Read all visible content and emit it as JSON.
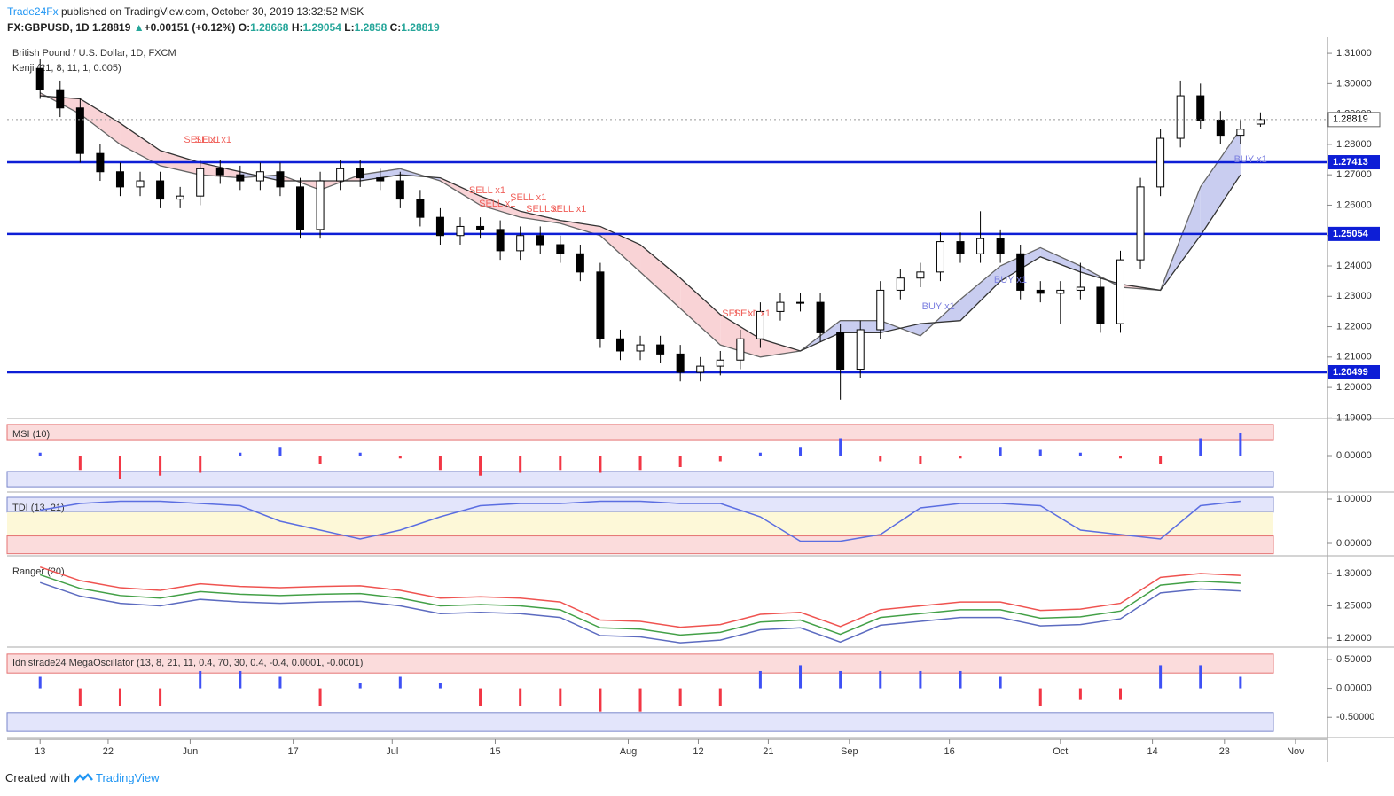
{
  "header": {
    "brand": "Trade24Fx",
    "published": "published on TradingView.com, October 30, 2019 13:32:52 MSK",
    "symbol": "FX:GBPUSD, 1D",
    "last": 1.28819,
    "change": "+0.00151 (+0.12%)",
    "o_label": "O:",
    "open": 1.28668,
    "h_label": "H:",
    "high": 1.29054,
    "l_label": "L:",
    "low": 1.2858,
    "c_label": "C:",
    "close": 1.28819
  },
  "chart_data": [
    {
      "type": "candlestick",
      "title": "British Pound / U.S. Dollar, 1D, FXCM",
      "subtitle": "Kenji (21, 8, 11, 1, 0.005)",
      "x": [
        0,
        2,
        4,
        6,
        8,
        10,
        12,
        14,
        16,
        18,
        20,
        22,
        24,
        26,
        28,
        30,
        32,
        34,
        36,
        38,
        40,
        42,
        44,
        46,
        48,
        50,
        52,
        54,
        56,
        58,
        60,
        62,
        64,
        66,
        68,
        70,
        72,
        74,
        76,
        78,
        80,
        82,
        84,
        86,
        88,
        90,
        92,
        94,
        96,
        98,
        100,
        102,
        104,
        106,
        108,
        110,
        112,
        114,
        116,
        118,
        120,
        122
      ],
      "open": [
        1.305,
        1.298,
        1.292,
        1.277,
        1.271,
        1.266,
        1.268,
        1.262,
        1.263,
        1.272,
        1.27,
        1.268,
        1.271,
        1.266,
        1.252,
        1.268,
        1.272,
        1.269,
        1.268,
        1.262,
        1.256,
        1.25,
        1.253,
        1.252,
        1.245,
        1.25,
        1.247,
        1.244,
        1.238,
        1.216,
        1.212,
        1.214,
        1.211,
        1.205,
        1.207,
        1.209,
        1.216,
        1.225,
        1.228,
        1.228,
        1.218,
        1.206,
        1.219,
        1.232,
        1.236,
        1.238,
        1.248,
        1.244,
        1.249,
        1.244,
        1.232,
        1.231,
        1.232,
        1.233,
        1.221,
        1.242,
        1.266,
        1.282,
        1.296,
        1.288,
        1.283,
        1.28668
      ],
      "high": [
        1.308,
        1.301,
        1.295,
        1.28,
        1.274,
        1.271,
        1.271,
        1.266,
        1.275,
        1.275,
        1.273,
        1.274,
        1.274,
        1.269,
        1.271,
        1.275,
        1.275,
        1.272,
        1.271,
        1.265,
        1.259,
        1.256,
        1.256,
        1.255,
        1.253,
        1.253,
        1.25,
        1.247,
        1.241,
        1.219,
        1.217,
        1.217,
        1.214,
        1.21,
        1.212,
        1.219,
        1.228,
        1.231,
        1.231,
        1.231,
        1.221,
        1.222,
        1.235,
        1.239,
        1.241,
        1.251,
        1.251,
        1.258,
        1.252,
        1.247,
        1.235,
        1.235,
        1.241,
        1.236,
        1.245,
        1.269,
        1.285,
        1.301,
        1.3,
        1.291,
        1.288,
        1.29054
      ],
      "low": [
        1.295,
        1.289,
        1.274,
        1.268,
        1.263,
        1.263,
        1.259,
        1.259,
        1.26,
        1.267,
        1.265,
        1.265,
        1.263,
        1.249,
        1.249,
        1.265,
        1.266,
        1.265,
        1.259,
        1.253,
        1.247,
        1.247,
        1.249,
        1.242,
        1.242,
        1.244,
        1.241,
        1.235,
        1.213,
        1.209,
        1.209,
        1.208,
        1.202,
        1.202,
        1.204,
        1.206,
        1.213,
        1.222,
        1.225,
        1.215,
        1.196,
        1.203,
        1.216,
        1.229,
        1.233,
        1.235,
        1.241,
        1.241,
        1.241,
        1.229,
        1.228,
        1.221,
        1.229,
        1.218,
        1.218,
        1.239,
        1.263,
        1.279,
        1.285,
        1.28,
        1.28,
        1.2858
      ],
      "close": [
        1.298,
        1.292,
        1.277,
        1.271,
        1.266,
        1.268,
        1.262,
        1.263,
        1.272,
        1.27,
        1.268,
        1.271,
        1.266,
        1.252,
        1.268,
        1.272,
        1.269,
        1.268,
        1.262,
        1.256,
        1.25,
        1.253,
        1.252,
        1.245,
        1.25,
        1.247,
        1.244,
        1.238,
        1.216,
        1.212,
        1.214,
        1.211,
        1.205,
        1.207,
        1.209,
        1.216,
        1.225,
        1.228,
        1.228,
        1.218,
        1.206,
        1.219,
        1.232,
        1.236,
        1.238,
        1.248,
        1.244,
        1.249,
        1.244,
        1.232,
        1.231,
        1.232,
        1.233,
        1.221,
        1.242,
        1.266,
        1.282,
        1.296,
        1.288,
        1.283,
        1.285,
        1.28819
      ],
      "up_color": "#ffffff",
      "down_color": "#000000",
      "kenji": {
        "x": [
          0,
          4,
          8,
          12,
          16,
          20,
          24,
          28,
          32,
          36,
          40,
          44,
          48,
          52,
          56,
          60,
          64,
          68,
          72,
          76,
          80,
          84,
          88,
          92,
          96,
          100,
          104,
          108,
          112,
          116,
          120
        ],
        "fast": [
          1.297,
          1.29,
          1.28,
          1.273,
          1.27,
          1.269,
          1.27,
          1.265,
          1.27,
          1.272,
          1.268,
          1.26,
          1.256,
          1.254,
          1.25,
          1.238,
          1.226,
          1.214,
          1.21,
          1.212,
          1.222,
          1.222,
          1.217,
          1.229,
          1.24,
          1.246,
          1.24,
          1.233,
          1.232,
          1.266,
          1.285
        ],
        "slow": [
          1.296,
          1.295,
          1.287,
          1.278,
          1.274,
          1.271,
          1.268,
          1.268,
          1.268,
          1.27,
          1.269,
          1.263,
          1.258,
          1.255,
          1.253,
          1.247,
          1.236,
          1.224,
          1.216,
          1.212,
          1.218,
          1.218,
          1.221,
          1.222,
          1.235,
          1.243,
          1.238,
          1.234,
          1.232,
          1.25,
          1.27
        ],
        "up_fill": "#c9cdf0",
        "down_fill": "#f9d3d6"
      },
      "levels": [
        1.27413,
        1.25054,
        1.20499
      ],
      "level_color": "#0d1ed6",
      "last_price": 1.28819,
      "annotations": [
        {
          "text": "SELL x1",
          "x": 16.2,
          "y": 1.2814,
          "color": "#f0605a"
        },
        {
          "text": "SELL x1",
          "x": 17.3,
          "y": 1.2814,
          "color": "#f0605a"
        },
        {
          "text": "SELL x1",
          "x": 44.7,
          "y": 1.2648,
          "color": "#f0605a"
        },
        {
          "text": "SELL x1",
          "x": 45.7,
          "y": 1.2604,
          "color": "#f0605a"
        },
        {
          "text": "SELL x1",
          "x": 48.8,
          "y": 1.2625,
          "color": "#f0605a"
        },
        {
          "text": "SELL x1",
          "x": 50.4,
          "y": 1.2587,
          "color": "#f0605a"
        },
        {
          "text": "SELL x1",
          "x": 52.8,
          "y": 1.2587,
          "color": "#f0605a"
        },
        {
          "text": "SELL x1",
          "x": 70,
          "y": 1.2242,
          "color": "#f0605a"
        },
        {
          "text": "SELL x1",
          "x": 71.2,
          "y": 1.2242,
          "color": "#f0605a"
        },
        {
          "text": "BUY x1",
          "x": 89.8,
          "y": 1.2265,
          "color": "#7b7fe0"
        },
        {
          "text": "BUY x1",
          "x": 97,
          "y": 1.2353,
          "color": "#7b7fe0"
        },
        {
          "text": "BUY x1",
          "x": 121,
          "y": 1.275,
          "color": "#7b7fe0"
        }
      ],
      "xlim": [
        -3.3,
        128.7
      ],
      "xticks": [
        {
          "value": 0,
          "label": "13"
        },
        {
          "value": 6.8,
          "label": "22"
        },
        {
          "value": 15,
          "label": "Jun"
        },
        {
          "value": 25.3,
          "label": "17"
        },
        {
          "value": 35.2,
          "label": "Jul"
        },
        {
          "value": 45.5,
          "label": "15"
        },
        {
          "value": 58.8,
          "label": "Aug"
        },
        {
          "value": 65.8,
          "label": "12"
        },
        {
          "value": 72.8,
          "label": "21"
        },
        {
          "value": 80.9,
          "label": "Sep"
        },
        {
          "value": 90.9,
          "label": "16"
        },
        {
          "value": 102,
          "label": "Oct"
        },
        {
          "value": 111.2,
          "label": "14"
        },
        {
          "value": 118.4,
          "label": "23"
        },
        {
          "value": 125.5,
          "label": "Nov"
        }
      ],
      "ylim": [
        1.1904,
        1.3144
      ],
      "yticks": [
        {
          "value": 1.19,
          "label": "1.19000"
        },
        {
          "value": 1.2,
          "label": "1.20000"
        },
        {
          "value": 1.21,
          "label": "1.21000"
        },
        {
          "value": 1.22,
          "label": "1.22000"
        },
        {
          "value": 1.23,
          "label": "1.23000"
        },
        {
          "value": 1.24,
          "label": "1.24000"
        },
        {
          "value": 1.25,
          "label": "1.25000"
        },
        {
          "value": 1.26,
          "label": "1.26000"
        },
        {
          "value": 1.27,
          "label": "1.27000"
        },
        {
          "value": 1.28,
          "label": "1.28000"
        },
        {
          "value": 1.29,
          "label": "1.29000"
        },
        {
          "value": 1.3,
          "label": "1.30000"
        },
        {
          "value": 1.31,
          "label": "1.31000"
        }
      ]
    },
    {
      "type": "bar",
      "title": "MSI (10)",
      "x": [
        0,
        4,
        8,
        12,
        16,
        20,
        24,
        28,
        32,
        36,
        40,
        44,
        48,
        52,
        56,
        60,
        64,
        68,
        72,
        76,
        80,
        84,
        88,
        92,
        96,
        100,
        104,
        108,
        112,
        116,
        120
      ],
      "values": [
        0.1,
        -0.5,
        -0.8,
        -0.7,
        -0.6,
        0.1,
        0.3,
        -0.3,
        0.1,
        -0.1,
        -0.5,
        -0.7,
        -0.6,
        -0.5,
        -0.6,
        -0.5,
        -0.4,
        -0.2,
        0.1,
        0.3,
        0.6,
        -0.2,
        -0.3,
        -0.1,
        0.3,
        0.2,
        0.1,
        -0.1,
        -0.3,
        0.6,
        0.8
      ],
      "positive_color": "#3f51f5",
      "negative_color": "#f23645",
      "ylim": [
        -1.2,
        1.2
      ],
      "yticks": [
        {
          "value": 0,
          "label": "0.00000"
        }
      ]
    },
    {
      "type": "line",
      "title": "TDI (13, 21)",
      "x": [
        0,
        4,
        8,
        12,
        16,
        20,
        24,
        28,
        32,
        36,
        40,
        44,
        48,
        52,
        56,
        60,
        64,
        68,
        72,
        76,
        80,
        84,
        88,
        92,
        96,
        100,
        104,
        108,
        112,
        116,
        120
      ],
      "series": [
        {
          "color": "#5b6ee1",
          "values": [
            0.75,
            0.9,
            0.95,
            0.95,
            0.9,
            0.85,
            0.5,
            0.3,
            0.1,
            0.3,
            0.6,
            0.85,
            0.9,
            0.9,
            0.95,
            0.95,
            0.9,
            0.9,
            0.6,
            0.05,
            0.05,
            0.2,
            0.8,
            0.9,
            0.9,
            0.85,
            0.3,
            0.2,
            0.1,
            0.85,
            0.95
          ]
        }
      ],
      "ylim": [
        -0.24,
        1.1
      ],
      "yticks": [
        {
          "value": 1,
          "label": "1.00000"
        },
        {
          "value": 0,
          "label": "0.00000"
        }
      ]
    },
    {
      "type": "line",
      "title": "Ranger (20)",
      "x": [
        0,
        4,
        8,
        12,
        16,
        20,
        24,
        28,
        32,
        36,
        40,
        44,
        48,
        52,
        56,
        60,
        64,
        68,
        72,
        76,
        80,
        84,
        88,
        92,
        96,
        100,
        104,
        108,
        112,
        116,
        120
      ],
      "series": [
        {
          "color": "#ef5350",
          "values": [
            1.31,
            1.289,
            1.278,
            1.274,
            1.284,
            1.28,
            1.278,
            1.28,
            1.281,
            1.274,
            1.262,
            1.264,
            1.262,
            1.256,
            1.228,
            1.226,
            1.217,
            1.221,
            1.237,
            1.24,
            1.218,
            1.244,
            1.25,
            1.256,
            1.256,
            1.243,
            1.245,
            1.254,
            1.294,
            1.3,
            1.297
          ]
        },
        {
          "color": "#43a047",
          "values": [
            1.298,
            1.277,
            1.266,
            1.262,
            1.272,
            1.268,
            1.266,
            1.268,
            1.269,
            1.262,
            1.25,
            1.252,
            1.25,
            1.244,
            1.216,
            1.214,
            1.205,
            1.209,
            1.225,
            1.228,
            1.206,
            1.232,
            1.238,
            1.244,
            1.244,
            1.231,
            1.233,
            1.242,
            1.282,
            1.288,
            1.285
          ]
        },
        {
          "color": "#5c6bc0",
          "values": [
            1.286,
            1.265,
            1.254,
            1.25,
            1.26,
            1.256,
            1.254,
            1.256,
            1.257,
            1.25,
            1.238,
            1.24,
            1.238,
            1.232,
            1.204,
            1.202,
            1.193,
            1.197,
            1.213,
            1.216,
            1.194,
            1.22,
            1.226,
            1.232,
            1.232,
            1.219,
            1.221,
            1.23,
            1.27,
            1.276,
            1.273
          ]
        }
      ],
      "ylim": [
        1.189,
        1.3233
      ],
      "yticks": [
        {
          "value": 1.3,
          "label": "1.30000"
        },
        {
          "value": 1.25,
          "label": "1.25000"
        },
        {
          "value": 1.2,
          "label": "1.20000"
        }
      ]
    },
    {
      "type": "bar",
      "title": "Idnistrade24 MegaOscillator (13, 8, 21, 11, 0.4, 70, 30, 0.4, -0.4, 0.0001, -0.0001)",
      "x": [
        0,
        4,
        8,
        12,
        16,
        20,
        24,
        28,
        32,
        36,
        40,
        44,
        48,
        52,
        56,
        60,
        64,
        68,
        72,
        76,
        80,
        84,
        88,
        92,
        96,
        100,
        104,
        108,
        112,
        116,
        120
      ],
      "values": [
        0.2,
        -0.3,
        -0.3,
        -0.3,
        0.3,
        0.3,
        0.2,
        -0.3,
        0.1,
        0.2,
        0.1,
        -0.3,
        -0.3,
        -0.3,
        -0.4,
        -0.4,
        -0.3,
        -0.3,
        0.3,
        0.4,
        0.3,
        0.3,
        0.3,
        0.3,
        0.2,
        -0.3,
        -0.2,
        -0.2,
        0.4,
        0.4,
        0.2
      ],
      "positive_color": "#3f51f5",
      "negative_color": "#f23645",
      "ylim": [
        -0.818,
        0.667
      ],
      "yticks": [
        {
          "value": 0.5,
          "label": "0.50000"
        },
        {
          "value": 0,
          "label": "0.00000"
        },
        {
          "value": -0.5,
          "label": "-0.50000"
        }
      ]
    }
  ],
  "footer": {
    "text": "Created with",
    "brand": "TradingView"
  }
}
